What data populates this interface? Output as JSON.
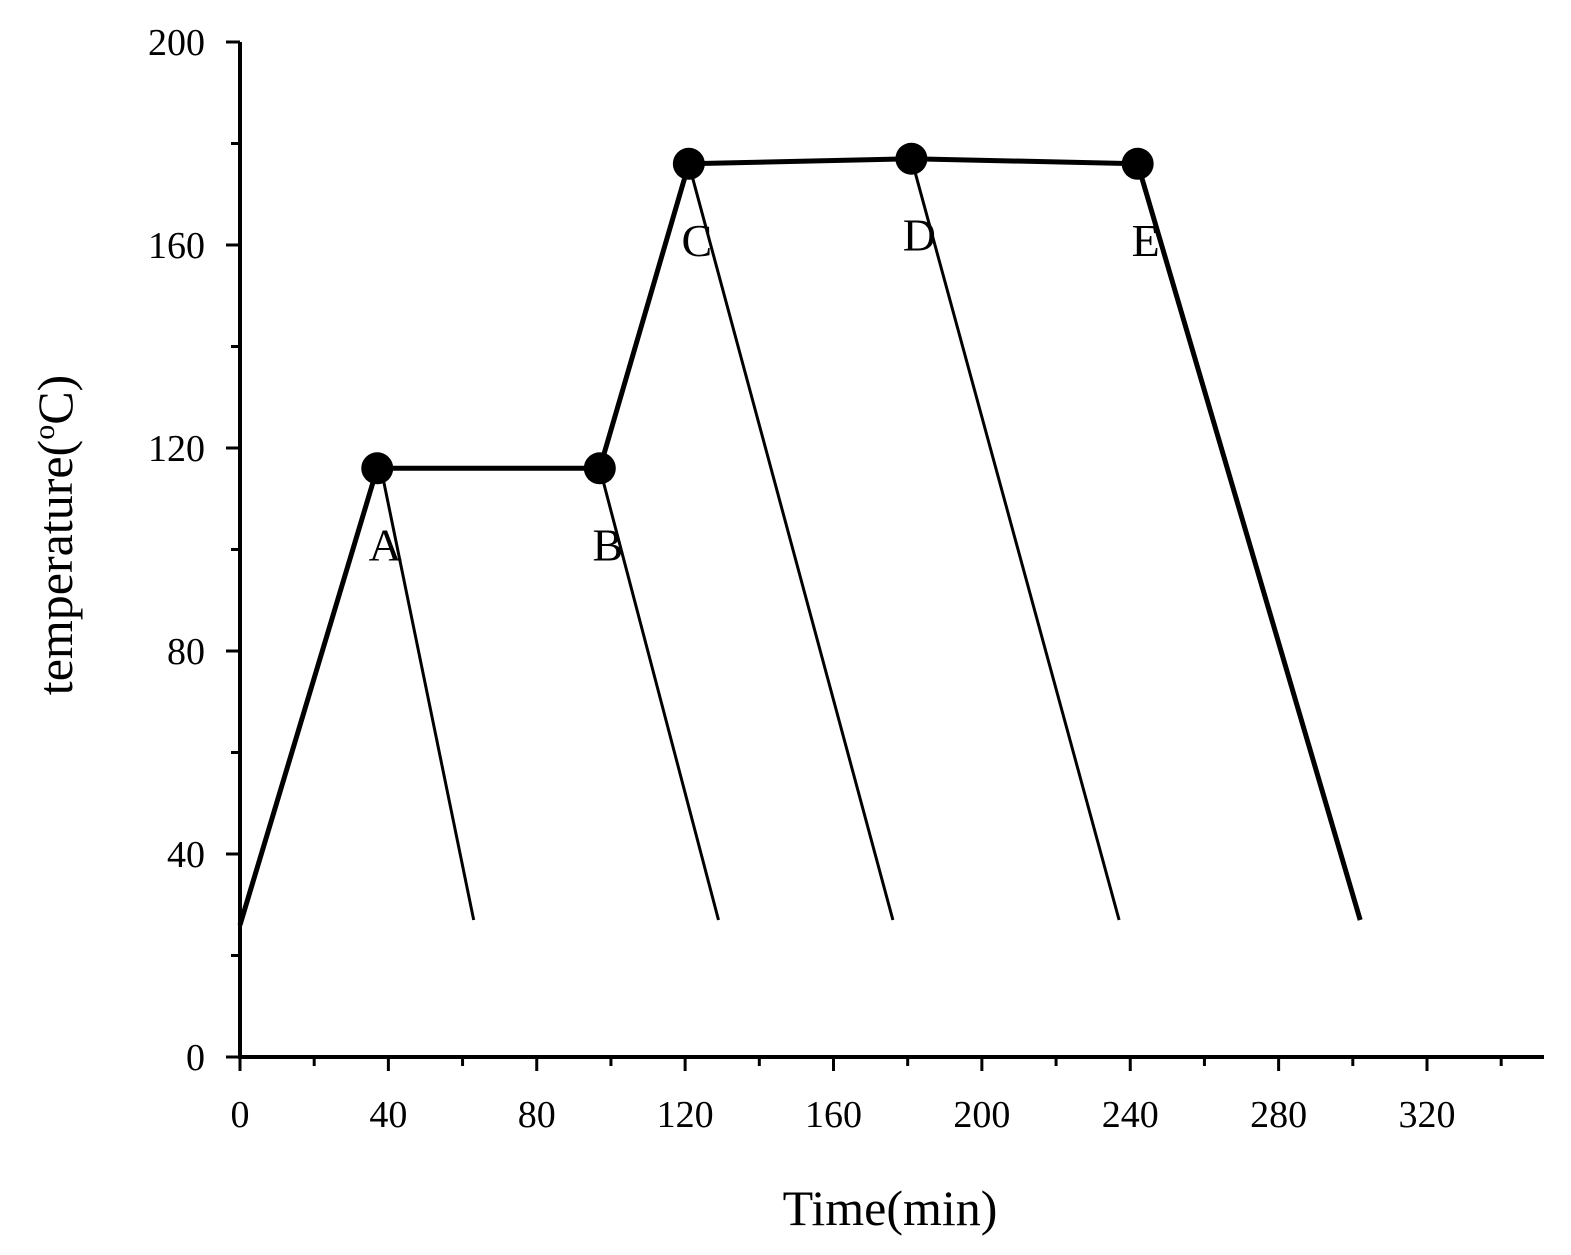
{
  "chart_data": {
    "type": "line",
    "title": "",
    "xlabel": "Time(min)",
    "ylabel_parts": [
      "temperature(",
      "o",
      "C)"
    ],
    "xlim": [
      0,
      350
    ],
    "ylim": [
      0,
      200
    ],
    "xticks": [
      0,
      40,
      80,
      120,
      160,
      200,
      240,
      280,
      320
    ],
    "yticks": [
      0,
      40,
      80,
      120,
      160,
      200
    ],
    "x_minor_step": 20,
    "y_minor_step": 20,
    "grid": false,
    "line_color": "#000000",
    "series": [
      {
        "role": "main-profile",
        "points": [
          [
            0,
            26
          ],
          [
            37,
            116
          ],
          [
            97,
            116
          ],
          [
            121,
            176
          ],
          [
            181,
            177
          ],
          [
            242,
            176
          ],
          [
            302,
            27
          ]
        ]
      },
      {
        "role": "cooling",
        "points": [
          [
            38,
            116
          ],
          [
            63,
            27
          ]
        ]
      },
      {
        "role": "cooling",
        "points": [
          [
            97,
            116
          ],
          [
            129,
            27
          ]
        ]
      },
      {
        "role": "cooling",
        "points": [
          [
            121,
            176
          ],
          [
            176,
            27
          ]
        ]
      },
      {
        "role": "cooling",
        "points": [
          [
            181,
            177
          ],
          [
            237,
            27
          ]
        ]
      }
    ],
    "markers": [
      {
        "label": "A",
        "x": 37,
        "y": 116
      },
      {
        "label": "B",
        "x": 97,
        "y": 116
      },
      {
        "label": "C",
        "x": 121,
        "y": 176
      },
      {
        "label": "D",
        "x": 181,
        "y": 177
      },
      {
        "label": "E",
        "x": 242,
        "y": 176
      }
    ],
    "marker_labels_offset": "below-right"
  }
}
